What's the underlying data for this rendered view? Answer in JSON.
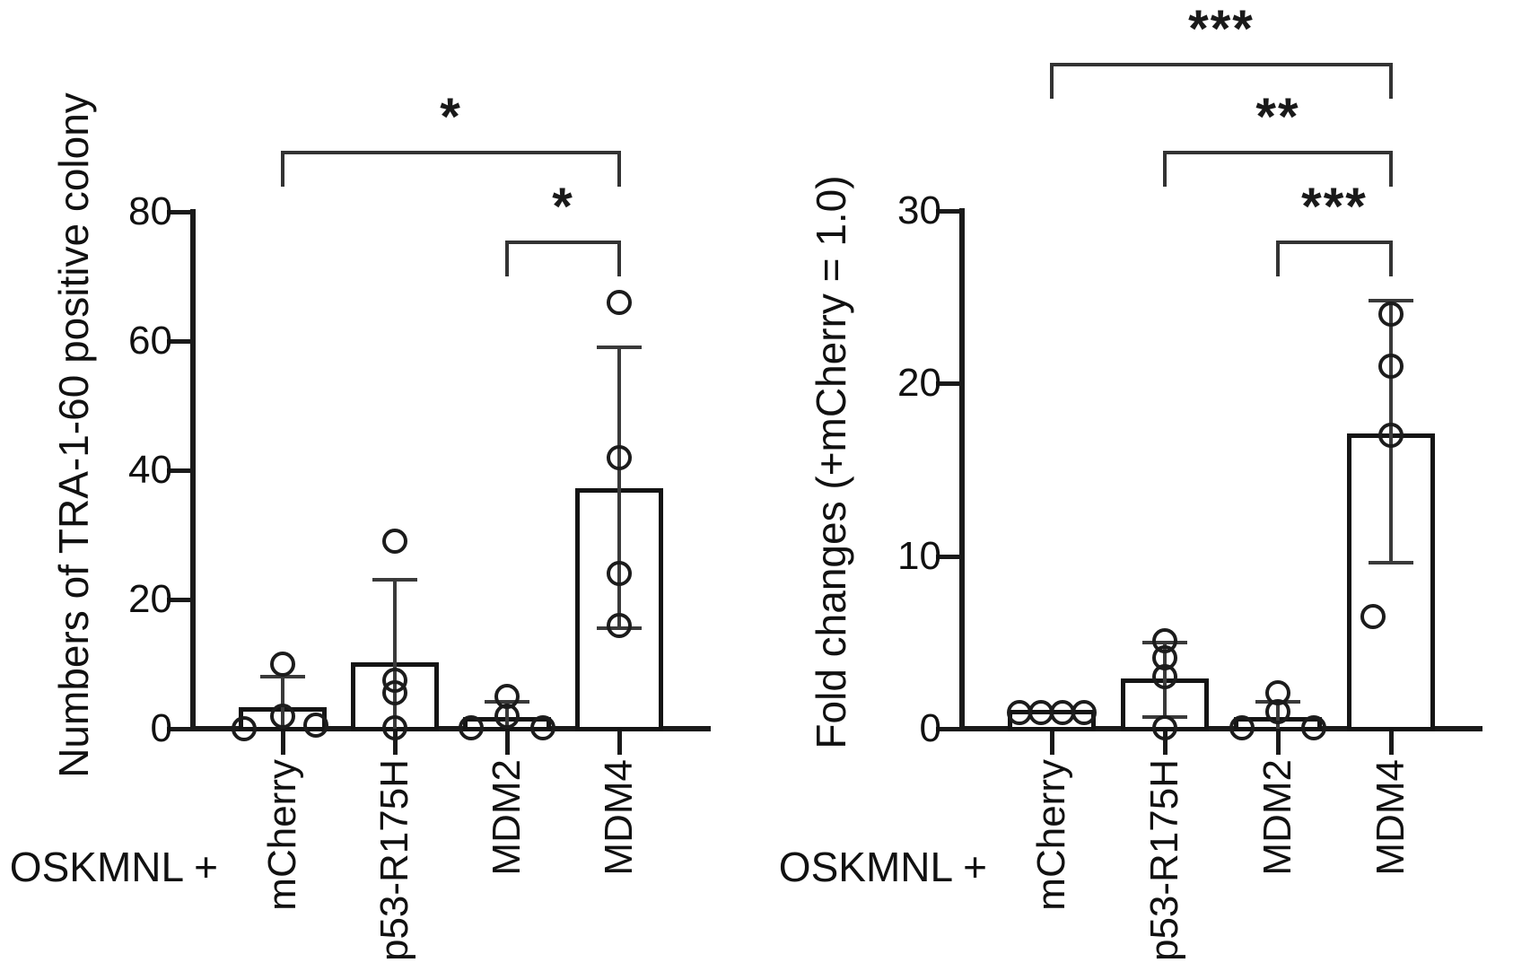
{
  "figure": {
    "background": "#ffffff",
    "text_color": "#111111",
    "axis_color": "#1a1a1a",
    "error_bar_color": "#3a3a3a",
    "bracket_color": "#333333",
    "bar_fill": "#ffffff"
  },
  "chart_data": [
    {
      "type": "bar",
      "title": "",
      "ylabel": "Numbers of TRA-1-60 positive colony",
      "xlabel": "OSKMNL +",
      "categories": [
        "mCherry",
        "p53-R175H",
        "MDM2",
        "MDM4"
      ],
      "ylim": [
        0,
        80
      ],
      "yticks": [
        0,
        20,
        40,
        60,
        80
      ],
      "grid": false,
      "legend": "none",
      "series": [
        {
          "category": "mCherry",
          "bar": 3,
          "err_high": 8,
          "err_low": null,
          "points": [
            {
              "v": 10,
              "dx": 0
            },
            {
              "v": 2,
              "dx": 0
            },
            {
              "v": 0,
              "dx": -43
            },
            {
              "v": 0.6,
              "dx": 37
            }
          ]
        },
        {
          "category": "p53-R175H",
          "bar": 10,
          "err_high": 23,
          "err_low": null,
          "points": [
            {
              "v": 29,
              "dx": 0
            },
            {
              "v": 7.5,
              "dx": 0
            },
            {
              "v": 5.5,
              "dx": 0
            },
            {
              "v": 0.2,
              "dx": 0
            }
          ]
        },
        {
          "category": "MDM2",
          "bar": 1.5,
          "err_high": 4.2,
          "err_low": null,
          "points": [
            {
              "v": 5,
              "dx": 0
            },
            {
              "v": 2,
              "dx": 0
            },
            {
              "v": 0.2,
              "dx": -40
            },
            {
              "v": 0.2,
              "dx": 40
            }
          ]
        },
        {
          "category": "MDM4",
          "bar": 37,
          "err_high": 59,
          "err_low": 15.5,
          "points": [
            {
              "v": 66,
              "dx": 0
            },
            {
              "v": 42,
              "dx": 0
            },
            {
              "v": 24,
              "dx": 0
            },
            {
              "v": 16,
              "dx": 0
            }
          ]
        }
      ],
      "significance": [
        {
          "from": "mCherry",
          "to": "MDM4",
          "label": "*"
        },
        {
          "from": "MDM2",
          "to": "MDM4",
          "label": "*"
        }
      ]
    },
    {
      "type": "bar",
      "title": "",
      "ylabel": "Fold changes (+mCherry = 1.0)",
      "xlabel": "OSKMNL +",
      "categories": [
        "mCherry",
        "p53-R175H",
        "MDM2",
        "MDM4"
      ],
      "ylim": [
        0,
        30
      ],
      "yticks": [
        0,
        10,
        20,
        30
      ],
      "grid": false,
      "legend": "none",
      "series": [
        {
          "category": "mCherry",
          "bar": 1.0,
          "err_high": null,
          "err_low": null,
          "points": [
            {
              "v": 0.95,
              "dx": -36
            },
            {
              "v": 0.95,
              "dx": -12
            },
            {
              "v": 0.95,
              "dx": 12
            },
            {
              "v": 0.95,
              "dx": 36
            }
          ]
        },
        {
          "category": "p53-R175H",
          "bar": 2.8,
          "err_high": 5.0,
          "err_low": 0.7,
          "points": [
            {
              "v": 5.1,
              "dx": 0
            },
            {
              "v": 4.1,
              "dx": 0
            },
            {
              "v": 3.0,
              "dx": 0
            },
            {
              "v": 0.05,
              "dx": 0
            }
          ]
        },
        {
          "category": "MDM2",
          "bar": 0.55,
          "err_high": 1.55,
          "err_low": null,
          "points": [
            {
              "v": 2.1,
              "dx": 0
            },
            {
              "v": 1.0,
              "dx": 0
            },
            {
              "v": 0.05,
              "dx": -40
            },
            {
              "v": 0.05,
              "dx": 40
            }
          ]
        },
        {
          "category": "MDM4",
          "bar": 17,
          "err_high": 24.8,
          "err_low": 9.6,
          "points": [
            {
              "v": 24,
              "dx": 0
            },
            {
              "v": 21,
              "dx": 0
            },
            {
              "v": 17,
              "dx": 0
            },
            {
              "v": 6.5,
              "dx": -20
            }
          ]
        }
      ],
      "significance": [
        {
          "from": "mCherry",
          "to": "MDM4",
          "label": "***"
        },
        {
          "from": "p53-R175H",
          "to": "MDM4",
          "label": "**"
        },
        {
          "from": "MDM2",
          "to": "MDM4",
          "label": "***"
        }
      ]
    }
  ]
}
